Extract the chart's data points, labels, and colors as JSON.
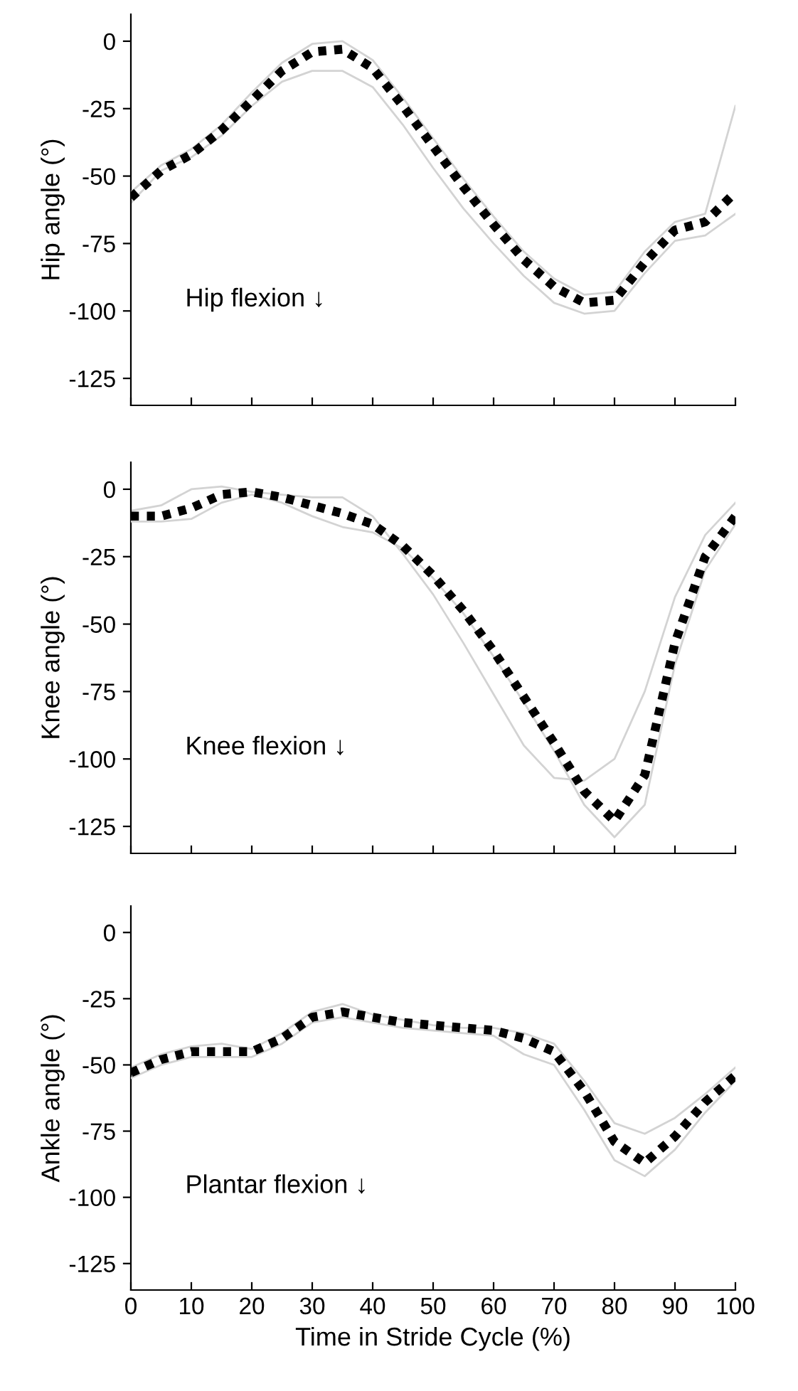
{
  "chart_data": [
    {
      "type": "line",
      "ylabel": "Hip angle (°)",
      "annotations": [
        "Hip flexion ↓"
      ],
      "x": [
        0,
        5,
        10,
        15,
        20,
        25,
        30,
        35,
        40,
        45,
        50,
        55,
        60,
        65,
        70,
        75,
        80,
        85,
        90,
        95,
        100
      ],
      "xlim": [
        0,
        100
      ],
      "xticks": [
        0,
        10,
        20,
        30,
        40,
        50,
        60,
        70,
        80,
        90,
        100
      ],
      "ylim": [
        -135,
        10
      ],
      "yticks": [
        -125,
        -100,
        -75,
        -50,
        -25,
        0
      ],
      "tick_labels": "y",
      "marker": "none",
      "series": [
        {
          "color": "#d3d3d3",
          "line_style": "solid",
          "values": [
            -60,
            -48,
            -43,
            -35,
            -24,
            -15,
            -11,
            -11,
            -17,
            -31,
            -47,
            -62,
            -75,
            -87,
            -97,
            -101,
            -100,
            -86,
            -74,
            -72,
            -64
          ]
        },
        {
          "color": "#d3d3d3",
          "line_style": "solid",
          "values": [
            -56,
            -46,
            -40,
            -31,
            -19,
            -8,
            -1,
            0,
            -7,
            -21,
            -36,
            -51,
            -65,
            -78,
            -88,
            -94,
            -93,
            -78,
            -67,
            -64,
            -24
          ]
        },
        {
          "color": "#000000",
          "line_style": "dotted",
          "values": [
            -58,
            -48,
            -42,
            -33,
            -22,
            -11,
            -4,
            -3,
            -10,
            -24,
            -39,
            -54,
            -68,
            -81,
            -91,
            -97,
            -96,
            -82,
            -70,
            -67,
            -56
          ]
        }
      ]
    },
    {
      "type": "line",
      "ylabel": "Knee angle (°)",
      "annotations": [
        "Knee flexion ↓"
      ],
      "x": [
        0,
        5,
        10,
        15,
        20,
        25,
        30,
        35,
        40,
        45,
        50,
        55,
        60,
        65,
        70,
        75,
        80,
        85,
        90,
        95,
        100
      ],
      "xlim": [
        0,
        100
      ],
      "xticks": [
        0,
        10,
        20,
        30,
        40,
        50,
        60,
        70,
        80,
        90,
        100
      ],
      "ylim": [
        -135,
        10
      ],
      "yticks": [
        -125,
        -100,
        -75,
        -50,
        -25,
        0
      ],
      "tick_labels": "y",
      "marker": "none",
      "series": [
        {
          "color": "#d3d3d3",
          "line_style": "solid",
          "values": [
            -8,
            -6,
            0,
            1,
            -1,
            -2,
            -3,
            -3,
            -10,
            -24,
            -39,
            -57,
            -76,
            -95,
            -107,
            -108,
            -100,
            -75,
            -40,
            -17,
            -5
          ]
        },
        {
          "color": "#d3d3d3",
          "line_style": "solid",
          "values": [
            -12,
            -12,
            -11,
            -5,
            -2,
            -5,
            -10,
            -14,
            -16,
            -22,
            -33,
            -46,
            -62,
            -79,
            -97,
            -117,
            -129,
            -117,
            -65,
            -30,
            -13
          ]
        },
        {
          "color": "#000000",
          "line_style": "dotted",
          "values": [
            -10,
            -10,
            -7,
            -2,
            -1,
            -3,
            -6,
            -9,
            -13,
            -21,
            -32,
            -45,
            -60,
            -77,
            -94,
            -112,
            -123,
            -106,
            -57,
            -25,
            -10
          ]
        }
      ]
    },
    {
      "type": "line",
      "xlabel": "Time in Stride Cycle (%)",
      "ylabel": "Ankle angle (°)",
      "annotations": [
        "Plantar flexion ↓"
      ],
      "x": [
        0,
        5,
        10,
        15,
        20,
        25,
        30,
        35,
        40,
        45,
        50,
        55,
        60,
        65,
        70,
        75,
        80,
        85,
        90,
        95,
        100
      ],
      "xlim": [
        0,
        100
      ],
      "xticks": [
        0,
        10,
        20,
        30,
        40,
        50,
        60,
        70,
        80,
        90,
        100
      ],
      "ylim": [
        -135,
        10
      ],
      "yticks": [
        -125,
        -100,
        -75,
        -50,
        -25,
        0
      ],
      "marker": "none",
      "series": [
        {
          "color": "#d3d3d3",
          "line_style": "solid",
          "values": [
            -51,
            -46,
            -43,
            -42,
            -44,
            -38,
            -30,
            -27,
            -31,
            -33,
            -35,
            -36,
            -36,
            -38,
            -42,
            -56,
            -72,
            -76,
            -70,
            -61,
            -51
          ]
        },
        {
          "color": "#d3d3d3",
          "line_style": "solid",
          "values": [
            -55,
            -50,
            -47,
            -47,
            -47,
            -42,
            -34,
            -32,
            -34,
            -36,
            -37,
            -38,
            -39,
            -46,
            -50,
            -67,
            -86,
            -92,
            -82,
            -68,
            -56
          ]
        },
        {
          "color": "#000000",
          "line_style": "dotted",
          "values": [
            -53,
            -48,
            -45,
            -45,
            -45,
            -40,
            -32,
            -30,
            -32,
            -34,
            -35,
            -36,
            -37,
            -40,
            -45,
            -60,
            -79,
            -87,
            -77,
            -64,
            -54
          ]
        }
      ]
    }
  ]
}
